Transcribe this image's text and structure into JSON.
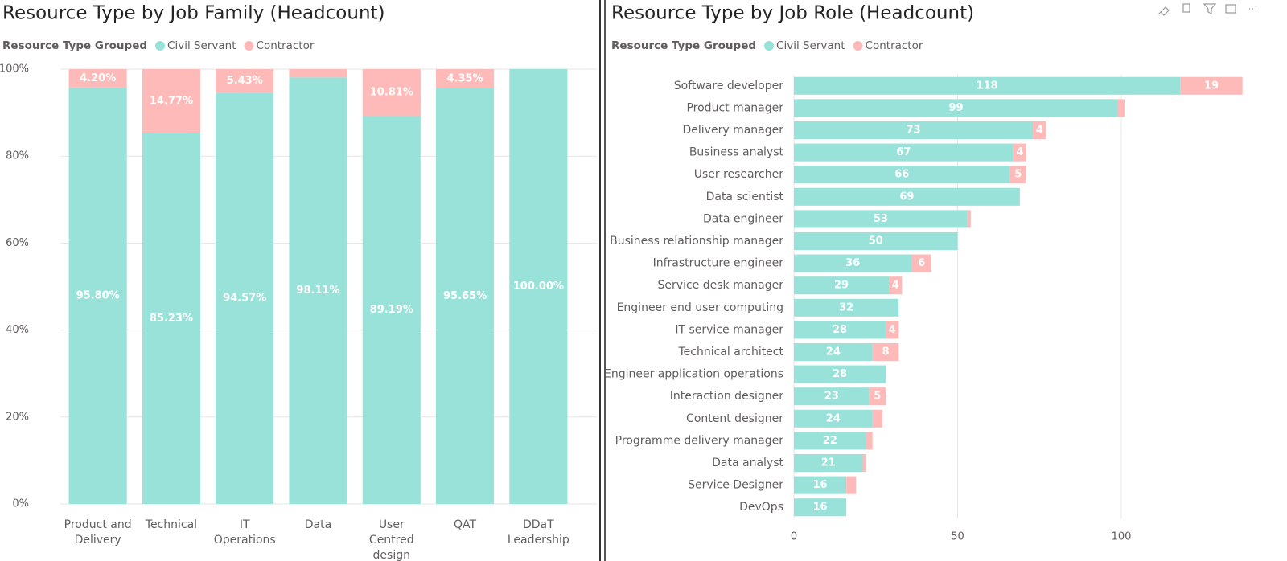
{
  "chart_data": [
    {
      "type": "column",
      "title": "Resource Type by Job Family (Headcount)",
      "legend_title": "Resource Type Grouped",
      "categories": [
        "Product and Delivery",
        "Technical",
        "IT Operations",
        "Data",
        "User Centred design",
        "QAT",
        "DDaT Leadership"
      ],
      "series": [
        {
          "name": "Civil Servant",
          "color": "#98e2da",
          "values": [
            95.8,
            85.23,
            94.57,
            98.11,
            89.19,
            95.65,
            100.0
          ],
          "value_labels": [
            "95.80%",
            "85.23%",
            "94.57%",
            "98.11%",
            "89.19%",
            "95.65%",
            "100.00%"
          ]
        },
        {
          "name": "Contractor",
          "color": "#fdbab8",
          "values": [
            4.2,
            14.77,
            5.43,
            1.89,
            10.81,
            4.35,
            0
          ],
          "value_labels": [
            "4.20%",
            "14.77%",
            "5.43%",
            null,
            "10.81%",
            "4.35%",
            null
          ]
        }
      ],
      "ylim": [
        0,
        100
      ],
      "yticks": [
        {
          "value": 0,
          "label": "0%"
        },
        {
          "value": 20,
          "label": "20%"
        },
        {
          "value": 40,
          "label": "40%"
        },
        {
          "value": 60,
          "label": "60%"
        },
        {
          "value": 80,
          "label": "80%"
        },
        {
          "value": 100,
          "label": "100%"
        }
      ],
      "grid": true
    },
    {
      "type": "bar",
      "title": "Resource Type by Job Role (Headcount)",
      "legend_title": "Resource Type Grouped",
      "categories": [
        "Software developer",
        "Product manager",
        "Delivery manager",
        "Business analyst",
        "User researcher",
        "Data scientist",
        "Data engineer",
        "Business relationship manager",
        "Infrastructure engineer",
        "Service desk manager",
        "Engineer end user computing",
        "IT service manager",
        "Technical architect",
        "Engineer application operations",
        "Interaction designer",
        "Content designer",
        "Programme delivery manager",
        "Data analyst",
        "Service Designer",
        "DevOps"
      ],
      "series": [
        {
          "name": "Civil Servant",
          "color": "#98e2da",
          "values": [
            118,
            99,
            73,
            67,
            66,
            69,
            53,
            50,
            36,
            29,
            32,
            28,
            24,
            28,
            23,
            24,
            22,
            21,
            16,
            16
          ]
        },
        {
          "name": "Contractor",
          "color": "#fdbab8",
          "values": [
            19,
            2,
            4,
            4,
            5,
            0,
            1,
            0,
            6,
            4,
            0,
            4,
            8,
            0,
            5,
            3,
            2,
            1,
            3,
            0
          ]
        }
      ],
      "xlim": [
        0,
        142
      ],
      "xticks": [
        0,
        50,
        100
      ],
      "grid": true
    }
  ]
}
